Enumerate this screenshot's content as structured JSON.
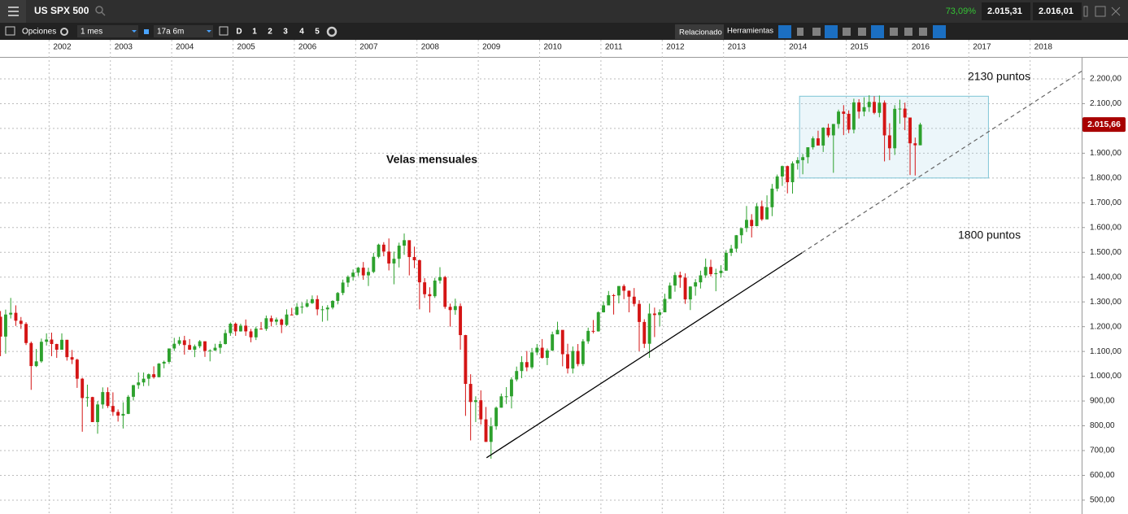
{
  "toolbar": {
    "menu_title": "US SPX 500",
    "change": "73,09%",
    "bid": "2.015,31",
    "ask": "2.016,01",
    "options": "Opciones",
    "interval": "1 mes",
    "range": "17a 6m",
    "periods": [
      "D",
      "1",
      "2",
      "3",
      "4",
      "5"
    ],
    "related": "Relacionado",
    "tools": "Herramientas"
  },
  "chart_data": {
    "type": "candlestick",
    "grid": true,
    "up_color": "#2da12d",
    "down_color": "#d41515",
    "annotations": [
      "Velas mensuales",
      "2130 puntos",
      "1800 puntos"
    ],
    "xlim": [
      2001.2,
      2018.84
    ],
    "xticks": [
      2002,
      2003,
      2004,
      2005,
      2006,
      2007,
      2008,
      2009,
      2010,
      2011,
      2012,
      2013,
      2014,
      2015,
      2016,
      2017,
      2018
    ],
    "ylim": [
      444,
      2282
    ],
    "yticks": [
      {
        "value": 500,
        "label": "500,00"
      },
      {
        "value": 600,
        "label": "600,00"
      },
      {
        "value": 700,
        "label": "700,00"
      },
      {
        "value": 800,
        "label": "800,00"
      },
      {
        "value": 900,
        "label": "900,00"
      },
      {
        "value": 1000,
        "label": "1.000,00"
      },
      {
        "value": 1100,
        "label": "1.100,00"
      },
      {
        "value": 1200,
        "label": "1.200,00"
      },
      {
        "value": 1300,
        "label": "1.300,00"
      },
      {
        "value": 1400,
        "label": "1.400,00"
      },
      {
        "value": 1500,
        "label": "1.500,00"
      },
      {
        "value": 1600,
        "label": "1.600,00"
      },
      {
        "value": 1700,
        "label": "1.700,00"
      },
      {
        "value": 1800,
        "label": "1.800,00"
      },
      {
        "value": 1900,
        "label": "1.900,00"
      },
      {
        "value": 2000,
        "label": "2.000,00"
      },
      {
        "value": 2100,
        "label": "2.100,00"
      },
      {
        "value": 2200,
        "label": "2.200,00"
      }
    ],
    "last_price": {
      "value": 2015.66,
      "label": "2.015,66"
    },
    "support_box": {
      "low": 1800,
      "high": 2130,
      "x0": 2014.24,
      "x1": 2017.32
    },
    "trendline": {
      "x": [
        2009.135,
        2014.28,
        2018.84
      ],
      "y": [
        671,
        1498,
        2231
      ]
    },
    "x": [
      2001.208,
      2001.292,
      2001.375,
      2001.458,
      2001.542,
      2001.625,
      2001.708,
      2001.792,
      2001.875,
      2001.958,
      2002.042,
      2002.125,
      2002.208,
      2002.292,
      2002.375,
      2002.458,
      2002.542,
      2002.625,
      2002.708,
      2002.792,
      2002.875,
      2002.958,
      2003.042,
      2003.125,
      2003.208,
      2003.292,
      2003.375,
      2003.458,
      2003.542,
      2003.625,
      2003.708,
      2003.792,
      2003.875,
      2003.958,
      2004.042,
      2004.125,
      2004.208,
      2004.292,
      2004.375,
      2004.458,
      2004.542,
      2004.625,
      2004.708,
      2004.792,
      2004.875,
      2004.958,
      2005.042,
      2005.125,
      2005.208,
      2005.292,
      2005.375,
      2005.458,
      2005.542,
      2005.625,
      2005.708,
      2005.792,
      2005.875,
      2005.958,
      2006.042,
      2006.125,
      2006.208,
      2006.292,
      2006.375,
      2006.458,
      2006.542,
      2006.625,
      2006.708,
      2006.792,
      2006.875,
      2006.958,
      2007.042,
      2007.125,
      2007.208,
      2007.292,
      2007.375,
      2007.458,
      2007.542,
      2007.625,
      2007.708,
      2007.792,
      2007.875,
      2007.958,
      2008.042,
      2008.125,
      2008.208,
      2008.292,
      2008.375,
      2008.458,
      2008.542,
      2008.625,
      2008.708,
      2008.792,
      2008.875,
      2008.958,
      2009.042,
      2009.125,
      2009.208,
      2009.292,
      2009.375,
      2009.458,
      2009.542,
      2009.625,
      2009.708,
      2009.792,
      2009.875,
      2009.958,
      2010.042,
      2010.125,
      2010.208,
      2010.292,
      2010.375,
      2010.458,
      2010.542,
      2010.625,
      2010.708,
      2010.792,
      2010.875,
      2010.958,
      2011.042,
      2011.125,
      2011.208,
      2011.292,
      2011.375,
      2011.458,
      2011.542,
      2011.625,
      2011.708,
      2011.792,
      2011.875,
      2011.958,
      2012.042,
      2012.125,
      2012.208,
      2012.292,
      2012.375,
      2012.458,
      2012.542,
      2012.625,
      2012.708,
      2012.792,
      2012.875,
      2012.958,
      2013.042,
      2013.125,
      2013.208,
      2013.292,
      2013.375,
      2013.458,
      2013.542,
      2013.625,
      2013.708,
      2013.792,
      2013.875,
      2013.958,
      2014.042,
      2014.125,
      2014.208,
      2014.292,
      2014.375,
      2014.458,
      2014.542,
      2014.625,
      2014.708,
      2014.792,
      2014.875,
      2014.958,
      2015.042,
      2015.125,
      2015.208,
      2015.292,
      2015.375,
      2015.458,
      2015.542,
      2015.625,
      2015.708,
      2015.792,
      2015.875,
      2015.958,
      2016.042,
      2016.125,
      2016.208
    ],
    "open": [
      1240,
      1160,
      1249,
      1256,
      1224,
      1211,
      1134,
      1041,
      1060,
      1139,
      1148,
      1130,
      1107,
      1147,
      1077,
      1067,
      990,
      912,
      916,
      815,
      886,
      936,
      880,
      856,
      841,
      848,
      917,
      964,
      975,
      990,
      1008,
      996,
      1051,
      1058,
      1112,
      1131,
      1145,
      1126,
      1107,
      1121,
      1141,
      1102,
      1104,
      1115,
      1130,
      1174,
      1212,
      1181,
      1204,
      1181,
      1157,
      1192,
      1191,
      1234,
      1220,
      1229,
      1207,
      1249,
      1248,
      1280,
      1281,
      1295,
      1311,
      1270,
      1270,
      1277,
      1304,
      1336,
      1378,
      1401,
      1418,
      1438,
      1407,
      1421,
      1482,
      1531,
      1503,
      1455,
      1474,
      1527,
      1549,
      1481,
      1468,
      1379,
      1331,
      1323,
      1386,
      1400,
      1280,
      1267,
      1283,
      1166,
      969,
      896,
      903,
      826,
      735,
      798,
      873,
      919,
      919,
      987,
      1021,
      1057,
      1036,
      1096,
      1115,
      1074,
      1104,
      1169,
      1187,
      1089,
      1031,
      1102,
      1049,
      1141,
      1183,
      1181,
      1258,
      1286,
      1327,
      1326,
      1364,
      1345,
      1321,
      1292,
      1219,
      1131,
      1253,
      1247,
      1258,
      1312,
      1366,
      1408,
      1398,
      1310,
      1362,
      1379,
      1407,
      1441,
      1412,
      1416,
      1426,
      1498,
      1515,
      1569,
      1598,
      1631,
      1606,
      1686,
      1633,
      1682,
      1757,
      1806,
      1848,
      1783,
      1859,
      1872,
      1884,
      1924,
      1960,
      1931,
      2003,
      1972,
      2018,
      2068,
      2059,
      1995,
      2105,
      2068,
      2086,
      2107,
      2063,
      2104,
      1972,
      1920,
      2079,
      2080,
      2044,
      1940,
      1932
    ],
    "high": [
      1263,
      1269,
      1316,
      1286,
      1239,
      1218,
      1140,
      1110,
      1152,
      1173,
      1176,
      1131,
      1173,
      1147,
      1106,
      1071,
      994,
      966,
      917,
      900,
      955,
      955,
      935,
      866,
      895,
      924,
      965,
      1015,
      1015,
      1011,
      1040,
      1053,
      1063,
      1112,
      1155,
      1159,
      1163,
      1150,
      1128,
      1146,
      1141,
      1109,
      1131,
      1142,
      1188,
      1217,
      1217,
      1212,
      1229,
      1191,
      1200,
      1219,
      1245,
      1245,
      1237,
      1233,
      1270,
      1276,
      1295,
      1298,
      1310,
      1326,
      1326,
      1284,
      1287,
      1307,
      1340,
      1390,
      1407,
      1431,
      1441,
      1461,
      1438,
      1498,
      1535,
      1541,
      1556,
      1503,
      1539,
      1576,
      1545,
      1523,
      1471,
      1396,
      1359,
      1397,
      1440,
      1405,
      1293,
      1313,
      1294,
      1167,
      1008,
      919,
      943,
      876,
      833,
      878,
      930,
      956,
      996,
      1039,
      1081,
      1102,
      1114,
      1130,
      1150,
      1112,
      1180,
      1220,
      1183,
      1131,
      1120,
      1130,
      1150,
      1196,
      1227,
      1262,
      1302,
      1344,
      1332,
      1364,
      1371,
      1346,
      1356,
      1307,
      1230,
      1293,
      1277,
      1270,
      1333,
      1378,
      1420,
      1422,
      1415,
      1363,
      1392,
      1426,
      1475,
      1470,
      1434,
      1448,
      1509,
      1530,
      1570,
      1598,
      1687,
      1654,
      1698,
      1709,
      1730,
      1776,
      1814,
      1850,
      1850,
      1867,
      1884,
      1897,
      1924,
      1968,
      1991,
      2005,
      2019,
      2018,
      2076,
      2094,
      2073,
      2120,
      2118,
      2126,
      2134,
      2130,
      2133,
      2113,
      2021,
      2094,
      2116,
      2104,
      2038,
      1963,
      2023
    ],
    "low": [
      1081,
      1091,
      1233,
      1203,
      1191,
      1126,
      945,
      1037,
      1054,
      1124,
      1081,
      1074,
      1107,
      1063,
      1049,
      953,
      776,
      877,
      815,
      768,
      869,
      872,
      840,
      817,
      789,
      847,
      902,
      949,
      960,
      961,
      990,
      996,
      1032,
      1050,
      1102,
      1124,
      1087,
      1106,
      1077,
      1113,
      1078,
      1060,
      1102,
      1091,
      1128,
      1163,
      1163,
      1180,
      1163,
      1137,
      1146,
      1188,
      1183,
      1201,
      1206,
      1174,
      1202,
      1246,
      1245,
      1253,
      1277,
      1292,
      1246,
      1220,
      1224,
      1270,
      1290,
      1327,
      1360,
      1386,
      1404,
      1389,
      1364,
      1416,
      1476,
      1484,
      1427,
      1371,
      1439,
      1490,
      1407,
      1436,
      1270,
      1316,
      1257,
      1316,
      1374,
      1272,
      1200,
      1248,
      1107,
      840,
      741,
      815,
      805,
      735,
      667,
      784,
      873,
      888,
      870,
      979,
      992,
      1020,
      1029,
      1085,
      1071,
      1045,
      1101,
      1170,
      1040,
      1011,
      1011,
      1040,
      1041,
      1131,
      1173,
      1180,
      1257,
      1294,
      1249,
      1294,
      1311,
      1258,
      1282,
      1101,
      1114,
      1074,
      1158,
      1202,
      1258,
      1312,
      1341,
      1357,
      1292,
      1267,
      1325,
      1354,
      1397,
      1403,
      1343,
      1398,
      1426,
      1485,
      1501,
      1536,
      1582,
      1560,
      1605,
      1627,
      1633,
      1646,
      1746,
      1768,
      1738,
      1737,
      1834,
      1815,
      1859,
      1915,
      1931,
      1905,
      1964,
      1821,
      2001,
      1973,
      1981,
      1980,
      2040,
      2049,
      2067,
      2057,
      2045,
      1867,
      1872,
      1893,
      2019,
      1993,
      1812,
      1810,
      1932
    ],
    "close": [
      1160,
      1249,
      1256,
      1224,
      1211,
      1134,
      1041,
      1060,
      1139,
      1148,
      1130,
      1107,
      1147,
      1077,
      1067,
      990,
      912,
      916,
      815,
      886,
      936,
      880,
      856,
      841,
      848,
      917,
      964,
      975,
      990,
      1008,
      996,
      1051,
      1058,
      1112,
      1131,
      1145,
      1126,
      1107,
      1121,
      1141,
      1102,
      1104,
      1115,
      1130,
      1174,
      1212,
      1181,
      1204,
      1181,
      1157,
      1192,
      1191,
      1234,
      1220,
      1229,
      1207,
      1249,
      1248,
      1280,
      1281,
      1295,
      1311,
      1270,
      1270,
      1277,
      1304,
      1336,
      1378,
      1401,
      1418,
      1438,
      1407,
      1421,
      1482,
      1531,
      1503,
      1455,
      1474,
      1527,
      1549,
      1481,
      1468,
      1379,
      1331,
      1323,
      1386,
      1400,
      1280,
      1267,
      1283,
      1166,
      969,
      896,
      903,
      826,
      735,
      798,
      873,
      919,
      919,
      987,
      1021,
      1057,
      1036,
      1096,
      1115,
      1074,
      1104,
      1169,
      1187,
      1089,
      1031,
      1102,
      1049,
      1141,
      1183,
      1181,
      1258,
      1286,
      1327,
      1326,
      1364,
      1345,
      1321,
      1292,
      1219,
      1131,
      1253,
      1247,
      1258,
      1312,
      1366,
      1408,
      1398,
      1310,
      1362,
      1379,
      1407,
      1441,
      1412,
      1416,
      1426,
      1498,
      1515,
      1569,
      1598,
      1631,
      1606,
      1686,
      1633,
      1682,
      1757,
      1806,
      1848,
      1783,
      1859,
      1872,
      1884,
      1924,
      1960,
      1931,
      2003,
      1972,
      2018,
      2068,
      2059,
      1995,
      2105,
      2068,
      2086,
      2107,
      2063,
      2104,
      1972,
      1920,
      2079,
      2080,
      2044,
      1940,
      1932,
      2015.66
    ]
  }
}
